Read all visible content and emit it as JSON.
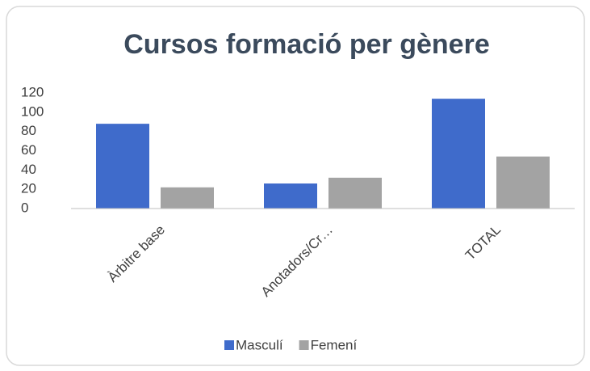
{
  "chart_data": {
    "type": "bar",
    "title": "Cursos formació per gènere",
    "categories": [
      "Àrbitre base",
      "Anotadors/Cr…",
      "TOTAL"
    ],
    "series": [
      {
        "name": "Masculí",
        "color": "#3f6bcb",
        "values": [
          88,
          26,
          114
        ]
      },
      {
        "name": "Femení",
        "color": "#a3a3a3",
        "values": [
          22,
          32,
          54
        ]
      }
    ],
    "ylim": [
      0,
      120
    ],
    "yticks": [
      0,
      20,
      40,
      60,
      80,
      100,
      120
    ],
    "grid": false,
    "legend": "bottom"
  }
}
